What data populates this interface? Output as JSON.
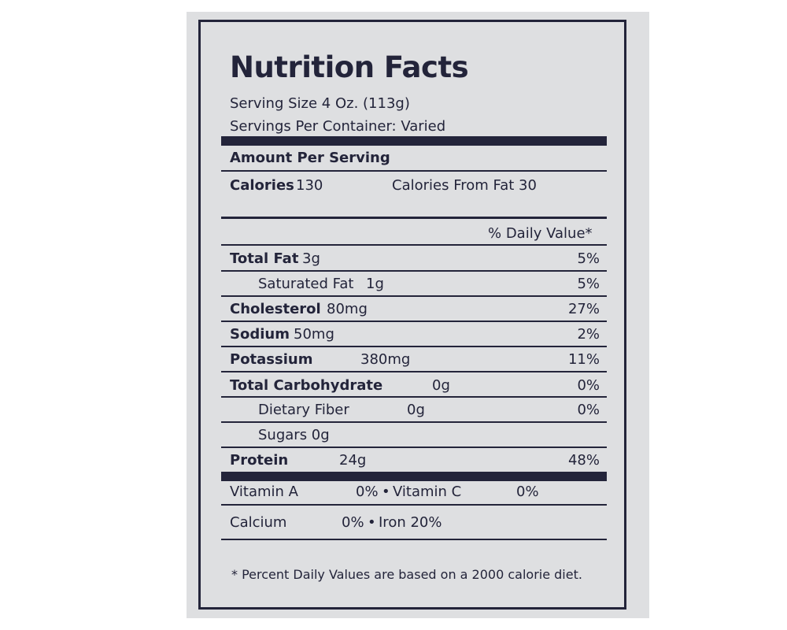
{
  "label": {
    "title": "Nutrition Facts",
    "serving_size": "Serving Size 4 Oz. (113g)",
    "servings_per_container": "Servings Per Container: Varied",
    "amount_per_serving": "Amount Per Serving",
    "calories_label": "Calories",
    "calories_value": "130",
    "calories_from_fat": "Calories From Fat 30",
    "daily_value_header": "% Daily Value*",
    "rows": [
      {
        "name": "Total Fat",
        "amount": "3g",
        "dv": "5%"
      },
      {
        "name": "Saturated Fat",
        "amount": "1g",
        "dv": "5%"
      },
      {
        "name": "Cholesterol",
        "amount": "80mg",
        "dv": "27%"
      },
      {
        "name": "Sodium",
        "amount": "50mg",
        "dv": "2%"
      },
      {
        "name": "Potassium",
        "amount": "380mg",
        "dv": "11%"
      },
      {
        "name": "Total Carbohydrate",
        "amount": "0g",
        "dv": "0%"
      },
      {
        "name": "Dietary Fiber",
        "amount": "0g",
        "dv": "0%"
      },
      {
        "name": "Sugars 0g",
        "amount": "",
        "dv": ""
      },
      {
        "name": "Protein",
        "amount": "24g",
        "dv": "48%"
      }
    ],
    "vitamins": {
      "vitamin_a_label": "Vitamin A",
      "vitamin_a_value": "0%",
      "bullet": "•",
      "vitamin_c_label": "Vitamin C",
      "vitamin_c_value": "0%",
      "calcium_label": "Calcium",
      "calcium_value": "0%",
      "iron": "Iron 20%"
    },
    "footnote": "* Percent Daily Values are based on a 2000 calorie diet."
  }
}
